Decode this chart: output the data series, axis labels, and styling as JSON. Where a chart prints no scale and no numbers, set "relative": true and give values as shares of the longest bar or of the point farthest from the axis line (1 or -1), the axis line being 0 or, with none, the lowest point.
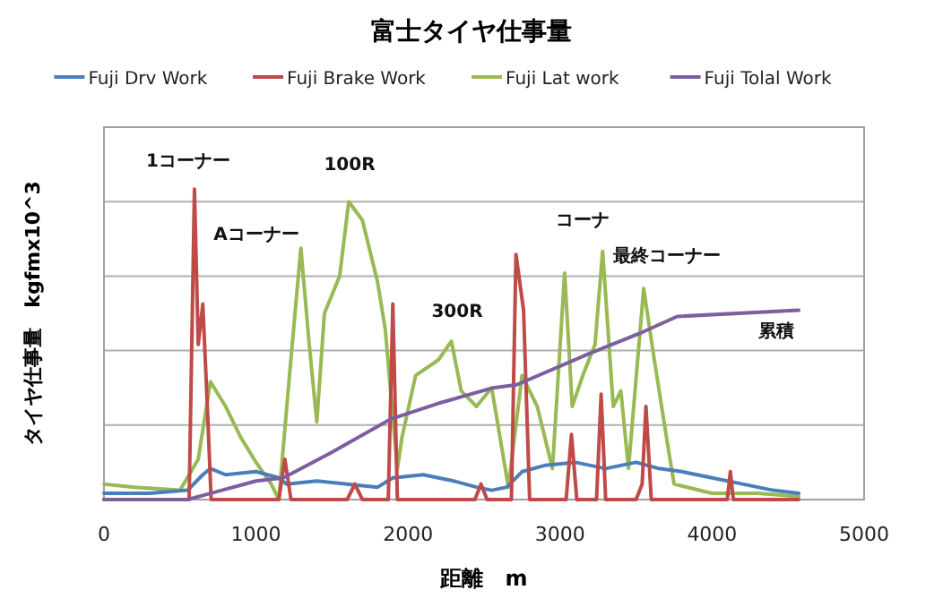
{
  "chart_data": {
    "type": "line",
    "title": "富士タイヤ仕事量",
    "xlabel": "距離　m",
    "ylabel": "タイヤ仕事量　kgfmx10^3",
    "relative": true,
    "xlim": [
      0,
      5000
    ],
    "xticks": [
      0,
      1000,
      2000,
      3000,
      4000,
      5000
    ],
    "grid": "y",
    "legend": "top",
    "line_style": "solid",
    "marker": "none",
    "series": [
      {
        "name": "Fuji Drv Work",
        "color": "#4a7ebb",
        "x": [
          0,
          300,
          550,
          650,
          700,
          800,
          1000,
          1150,
          1200,
          1400,
          1600,
          1800,
          1900,
          2100,
          2300,
          2450,
          2550,
          2650,
          2750,
          2900,
          3100,
          3300,
          3500,
          3650,
          3800,
          4000,
          4200,
          4400,
          4570
        ],
        "values": [
          0.02,
          0.02,
          0.03,
          0.08,
          0.1,
          0.08,
          0.09,
          0.07,
          0.05,
          0.06,
          0.05,
          0.04,
          0.07,
          0.08,
          0.06,
          0.04,
          0.03,
          0.04,
          0.09,
          0.11,
          0.12,
          0.1,
          0.12,
          0.1,
          0.09,
          0.07,
          0.05,
          0.03,
          0.02
        ]
      },
      {
        "name": "Fuji Brake Work",
        "color": "#be4b48",
        "x": [
          0,
          560,
          595,
          620,
          650,
          680,
          705,
          1150,
          1190,
          1230,
          1600,
          1650,
          1700,
          1870,
          1900,
          1930,
          2440,
          2480,
          2520,
          2680,
          2710,
          2760,
          2800,
          3040,
          3075,
          3110,
          3240,
          3270,
          3300,
          3500,
          3540,
          3565,
          3600,
          4100,
          4120,
          4140,
          4570
        ],
        "values": [
          0,
          0,
          1.0,
          0.5,
          0.63,
          0.3,
          0,
          0,
          0.13,
          0,
          0,
          0.05,
          0,
          0,
          0.63,
          0,
          0,
          0.05,
          0,
          0,
          0.79,
          0.61,
          0,
          0,
          0.21,
          0,
          0,
          0.34,
          0,
          0,
          0.05,
          0.3,
          0,
          0,
          0.09,
          0,
          0
        ]
      },
      {
        "name": "Fuji Lat work",
        "color": "#98b954",
        "x": [
          0,
          200,
          500,
          620,
          700,
          800,
          900,
          1000,
          1100,
          1150,
          1220,
          1295,
          1350,
          1400,
          1450,
          1550,
          1610,
          1700,
          1800,
          1850,
          1930,
          1960,
          2050,
          2200,
          2285,
          2350,
          2450,
          2550,
          2660,
          2750,
          2850,
          2950,
          3030,
          3080,
          3150,
          3230,
          3280,
          3350,
          3400,
          3450,
          3550,
          3620,
          3700,
          3750,
          4000,
          4300,
          4570
        ],
        "values": [
          0.05,
          0.04,
          0.03,
          0.13,
          0.38,
          0.3,
          0.2,
          0.12,
          0.05,
          0.0,
          0.4,
          0.81,
          0.5,
          0.25,
          0.6,
          0.72,
          0.96,
          0.9,
          0.7,
          0.55,
          0.1,
          0.2,
          0.4,
          0.45,
          0.51,
          0.35,
          0.3,
          0.36,
          0.04,
          0.4,
          0.3,
          0.1,
          0.73,
          0.3,
          0.4,
          0.5,
          0.8,
          0.3,
          0.35,
          0.1,
          0.68,
          0.45,
          0.2,
          0.05,
          0.02,
          0.02,
          0.01
        ]
      },
      {
        "name": "Fuji Tolal Work",
        "color": "#7d5fa0",
        "x": [
          0,
          550,
          700,
          1000,
          1180,
          1490,
          1890,
          2200,
          2560,
          2715,
          3190,
          3545,
          3770,
          4570
        ],
        "values": [
          0,
          0,
          0.02,
          0.06,
          0.07,
          0.15,
          0.26,
          0.31,
          0.36,
          0.37,
          0.47,
          0.54,
          0.59,
          0.61
        ]
      }
    ],
    "annotations": [
      "1コーナー",
      "Aコーナー",
      "100R",
      "300R",
      "コーナ",
      "最終コーナー",
      "累積"
    ]
  }
}
